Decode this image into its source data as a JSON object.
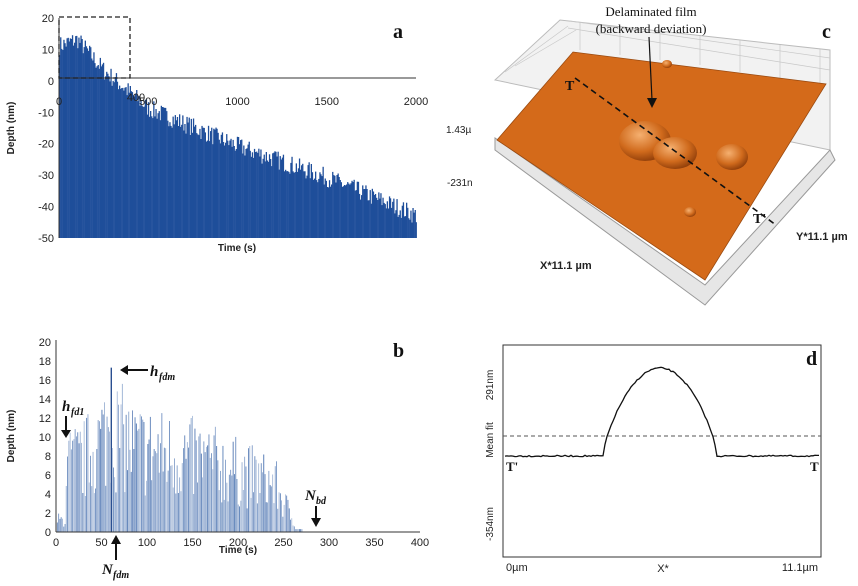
{
  "panel_labels": {
    "a": "a",
    "b": "b",
    "c": "c",
    "d": "d"
  },
  "chart_data": [
    {
      "id": "a",
      "type": "bar",
      "xlabel": "Time (s)",
      "ylabel": "Depth (nm)",
      "xlim": [
        0,
        2000
      ],
      "ylim": [
        -50,
        20
      ],
      "x_ticks": [
        "0",
        "500",
        "1000",
        "1500",
        "2000"
      ],
      "y_ticks": [
        "-50",
        "-40",
        "-30",
        "-20",
        "-10",
        "0",
        "10",
        "20"
      ],
      "inset_box_ticks": "400",
      "trend": [
        {
          "x": 0,
          "y": 10
        },
        {
          "x": 100,
          "y": 12
        },
        {
          "x": 250,
          "y": 2
        },
        {
          "x": 500,
          "y": -10
        },
        {
          "x": 1000,
          "y": -22
        },
        {
          "x": 1500,
          "y": -32
        },
        {
          "x": 2000,
          "y": -44
        }
      ],
      "series": [
        {
          "color": "#1f4e9a"
        }
      ]
    },
    {
      "id": "b",
      "type": "bar",
      "xlabel": "Time (s)",
      "ylabel": "Depth (nm)",
      "xlim": [
        0,
        400
      ],
      "ylim": [
        0,
        20
      ],
      "x_ticks": [
        "0",
        "50",
        "100",
        "150",
        "200",
        "250",
        "300",
        "350",
        "400"
      ],
      "y_ticks": [
        "0",
        "2",
        "4",
        "6",
        "8",
        "10",
        "12",
        "14",
        "16",
        "18",
        "20"
      ],
      "peak_values": [
        {
          "x": 10,
          "y": 11
        },
        {
          "x": 30,
          "y": 12
        },
        {
          "x": 60,
          "y": 17.3
        },
        {
          "x": 85,
          "y": 14
        },
        {
          "x": 120,
          "y": 13
        },
        {
          "x": 160,
          "y": 12
        },
        {
          "x": 200,
          "y": 10
        },
        {
          "x": 240,
          "y": 8
        },
        {
          "x": 260,
          "y": 2
        }
      ],
      "annotations": {
        "h_fdm": "h",
        "h_fdm_sub": "fdm",
        "h_fd1": "h",
        "h_fd1_sub": "fd1",
        "N_fdm": "N",
        "N_fdm_sub": "fdm",
        "N_bd": "N",
        "N_bd_sub": "bd"
      },
      "series": [
        {
          "color": "#4a72b0"
        }
      ]
    }
  ],
  "panel_c": {
    "callout_line1": "Delaminated film",
    "callout_line2": "(backward deviation)",
    "z_top": "1.43µ",
    "z_bottom": "-231n",
    "x_axis": "X*11.1 µm",
    "y_axis": "Y*11.1 µm",
    "t_left": "T",
    "t_right": "T'",
    "surface_color": "#d46a1a"
  },
  "panel_d": {
    "y_top": "291nm",
    "y_mid": "Mean fit",
    "y_bottom": "-354nm",
    "x_left": "0µm",
    "x_mid": "X*",
    "x_right": "11.1µm",
    "t_left": "T'",
    "t_right": "T"
  }
}
